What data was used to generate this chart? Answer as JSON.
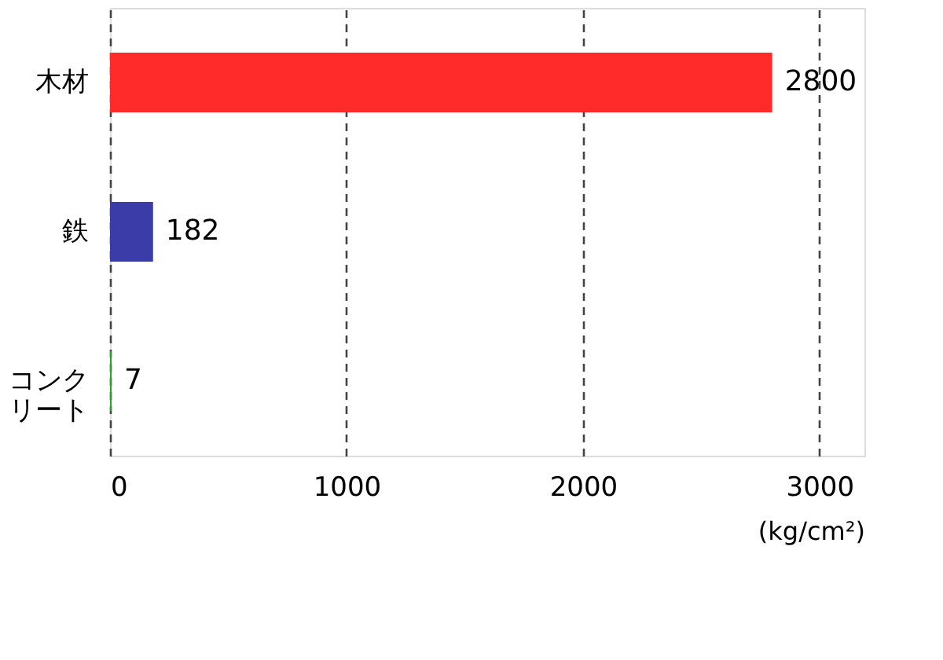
{
  "chart_data": {
    "type": "bar",
    "orientation": "horizontal",
    "categories": [
      "木材",
      "鉄",
      "コンクリート"
    ],
    "values": [
      2800,
      182,
      7
    ],
    "colors": [
      "#ff2a2a",
      "#3c3ca8",
      "#2ea02e"
    ],
    "xlim": [
      0,
      3190
    ],
    "xticks": [
      0,
      1000,
      2000,
      3000
    ],
    "xlabel": "(kg/cm²)",
    "grid": "x",
    "data_labels": true
  }
}
